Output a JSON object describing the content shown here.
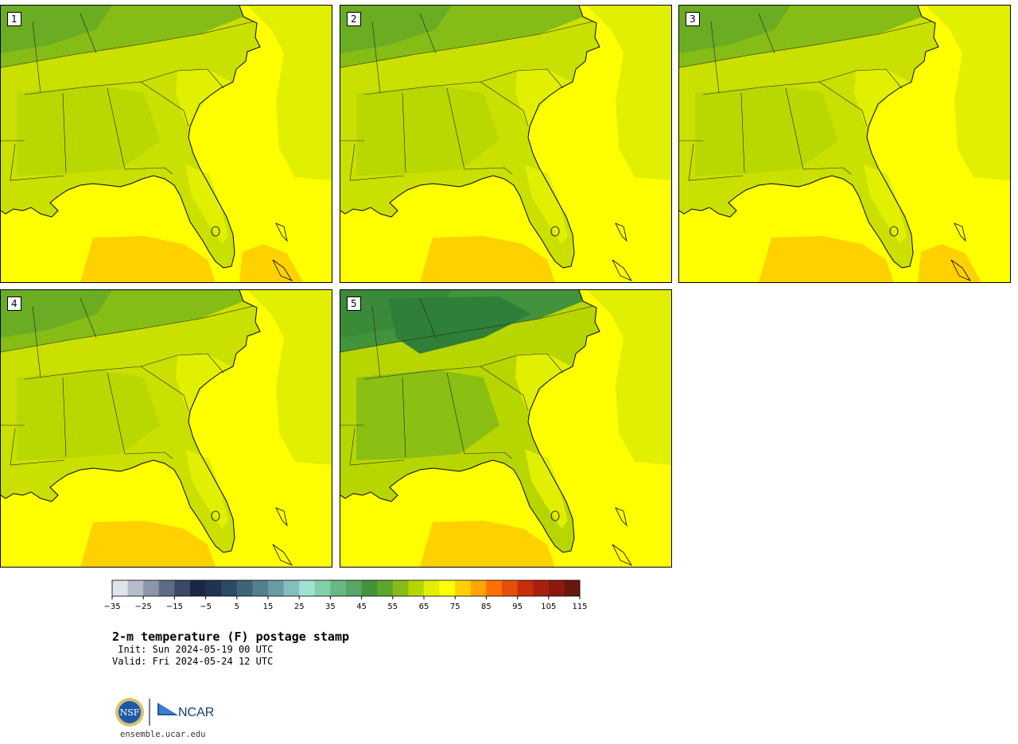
{
  "panels": [
    {
      "label": "1",
      "variant": 1
    },
    {
      "label": "2",
      "variant": 2
    },
    {
      "label": "3",
      "variant": 3
    },
    {
      "label": "4",
      "variant": 4
    },
    {
      "label": "5",
      "variant": 5
    }
  ],
  "colorbar": {
    "ticks": [
      "−35",
      "−25",
      "−15",
      "−5",
      "5",
      "15",
      "25",
      "35",
      "45",
      "55",
      "65",
      "75",
      "85",
      "95",
      "105",
      "115"
    ],
    "colors": [
      "#dfe3ea",
      "#b6bccb",
      "#8d95aa",
      "#5f6b86",
      "#3b4866",
      "#1a2642",
      "#213353",
      "#2c4a66",
      "#3e6478",
      "#547f8c",
      "#6a9ba3",
      "#84bfbe",
      "#9fe1d3",
      "#80d0a8",
      "#67b883",
      "#58a565",
      "#43933d",
      "#5ca62c",
      "#86bc16",
      "#b7d600",
      "#e1ef00",
      "#ffff00",
      "#ffd100",
      "#ffa500",
      "#ff7000",
      "#e94d0a",
      "#c92d0a",
      "#a82010",
      "#8c1a10",
      "#6b1710"
    ]
  },
  "title": "2-m temperature (F) postage stamp",
  "init": " Init: Sun 2024-05-19 00 UTC",
  "valid": "Valid: Fri 2024-05-24 12 UTC",
  "logo": {
    "nsf": "NSF",
    "ncar": "NCAR"
  },
  "site": "ensemble.ucar.edu"
}
